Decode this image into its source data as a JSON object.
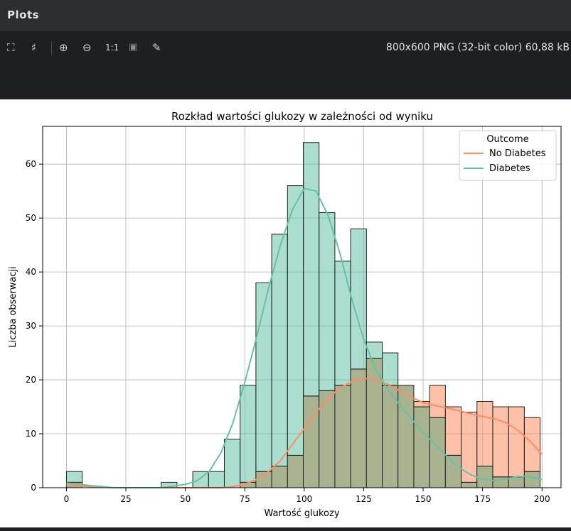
{
  "window": {
    "title": "Plots"
  },
  "toolbar": {
    "icons": [
      {
        "name": "fit-to-window-icon",
        "glyph": "⛶"
      },
      {
        "name": "grid-icon",
        "glyph": "♯"
      },
      {
        "name": "zoom-in-icon",
        "glyph": "⊕"
      },
      {
        "name": "zoom-out-icon",
        "glyph": "⊖"
      },
      {
        "name": "actual-size-icon",
        "glyph": "1:1"
      },
      {
        "name": "background-icon",
        "glyph": "▣"
      },
      {
        "name": "color-picker-icon",
        "glyph": "✎"
      }
    ],
    "image_info": "800x600 PNG (32-bit color) 60,88 kB"
  },
  "chart_data": {
    "type": "bar",
    "title": "Rozkład wartości glukozy w zależności od wyniku",
    "xlabel": "Wartość glukozy",
    "ylabel": "Liczba obserwacji",
    "xlim": [
      -10,
      208
    ],
    "ylim": [
      0,
      67
    ],
    "xticks": [
      0,
      25,
      50,
      75,
      100,
      125,
      150,
      175,
      200
    ],
    "yticks": [
      0,
      10,
      20,
      30,
      40,
      50,
      60
    ],
    "grid": true,
    "bin_edges": [
      0,
      6.64,
      13.28,
      19.92,
      26.56,
      33.2,
      39.84,
      46.48,
      53.12,
      59.76,
      66.4,
      73.04,
      79.68,
      86.32,
      92.96,
      99.6,
      106.24,
      112.88,
      119.52,
      126.16,
      132.8,
      139.44,
      146.08,
      152.72,
      159.36,
      166.0,
      172.64,
      179.28,
      185.92,
      192.56,
      199.2
    ],
    "legend": {
      "title": "Outcome",
      "placement": "top-right"
    },
    "colors": {
      "no_diabetes": "#fc8d62",
      "diabetes": "#66c2a5",
      "overlap": "#a9b390"
    },
    "series": [
      {
        "name": "No Diabetes",
        "values": [
          1,
          0,
          0,
          0,
          0,
          0,
          0,
          0,
          0,
          0,
          0,
          1,
          3,
          4,
          6,
          17,
          18,
          19,
          22,
          24,
          19,
          19,
          16,
          19,
          15,
          14,
          16,
          15,
          15,
          13
        ]
      },
      {
        "name": "Diabetes",
        "values": [
          3,
          0,
          0,
          0,
          0,
          0,
          1,
          0,
          3,
          3,
          9,
          19,
          38,
          47,
          56,
          64,
          51,
          42,
          48,
          27,
          25,
          19,
          15,
          13,
          6,
          1,
          4,
          2,
          2,
          3
        ]
      }
    ],
    "kde": {
      "x": [
        0,
        10,
        20,
        30,
        40,
        50,
        55,
        60,
        65,
        70,
        75,
        80,
        85,
        90,
        95,
        100,
        105,
        110,
        115,
        120,
        125,
        130,
        135,
        140,
        145,
        150,
        155,
        160,
        165,
        170,
        175,
        180,
        185,
        190,
        195,
        200
      ],
      "no_diabetes": [
        0.5,
        0.2,
        0,
        0,
        0,
        0,
        0,
        0,
        0,
        0.2,
        0.7,
        1.5,
        3,
        5,
        8,
        11,
        14,
        16.5,
        18.5,
        19.7,
        20.3,
        20,
        19.2,
        18,
        16.8,
        15.8,
        15.2,
        14.8,
        14.3,
        13.7,
        13.2,
        12.8,
        12,
        10.6,
        8.6,
        6.2
      ],
      "diabetes": [
        0.9,
        0.4,
        0,
        0,
        0,
        0.6,
        1.3,
        3,
        6.5,
        12,
        19.5,
        28,
        37,
        45,
        51.5,
        55.5,
        55,
        50.5,
        43.5,
        35,
        27.5,
        22,
        18.3,
        15.5,
        12.8,
        10.3,
        8,
        5.8,
        3.8,
        2.4,
        1.6,
        1.3,
        1.6,
        2.1,
        2,
        1.5
      ]
    }
  }
}
